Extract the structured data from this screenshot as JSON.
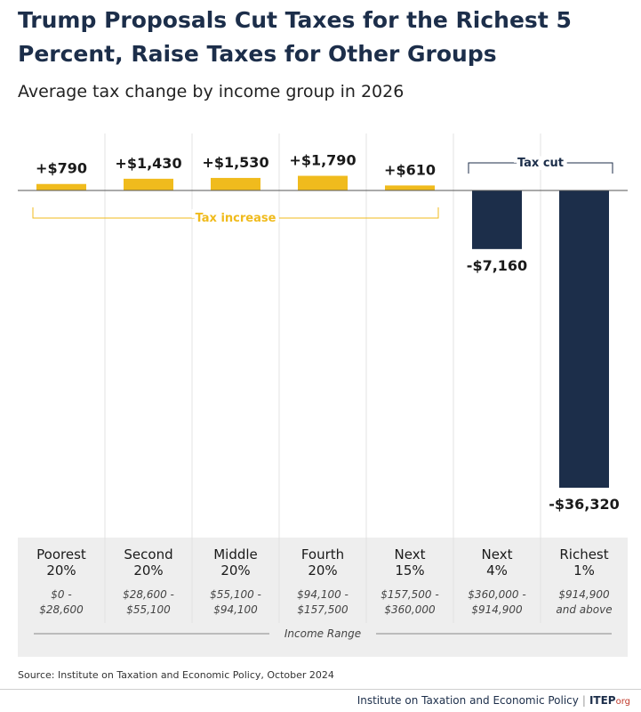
{
  "title": "Trump Proposals Cut Taxes for the Richest 5 Percent, Raise Taxes for Other Groups",
  "subtitle": "Average tax change by income group in 2026",
  "source": "Source: Institute on Taxation and Economic Policy, October 2024",
  "footer": {
    "org_name": "Institute on Taxation and Economic Policy",
    "logo_main": "ITEP",
    "logo_suffix": "org"
  },
  "colors": {
    "increase": "#f0bb1d",
    "cut": "#1c2e4a",
    "band": "#eeeeee",
    "grid": "#e3e3e3"
  },
  "chart_data": {
    "type": "bar",
    "title": "Trump Proposals Cut Taxes for the Richest 5 Percent, Raise Taxes for Other Groups",
    "subtitle": "Average tax change by income group in 2026",
    "xlabel": "Income Range",
    "ylabel": "",
    "categories": [
      "Poorest 20%",
      "Second 20%",
      "Middle 20%",
      "Fourth 20%",
      "Next 15%",
      "Next 4%",
      "Richest 1%"
    ],
    "category_lines": [
      [
        "Poorest",
        "20%"
      ],
      [
        "Second",
        "20%"
      ],
      [
        "Middle",
        "20%"
      ],
      [
        "Fourth",
        "20%"
      ],
      [
        "Next",
        "15%"
      ],
      [
        "Next",
        "4%"
      ],
      [
        "Richest",
        "1%"
      ]
    ],
    "ranges": [
      [
        "$0 -",
        "$28,600"
      ],
      [
        "$28,600 -",
        "$55,100"
      ],
      [
        "$55,100 -",
        "$94,100"
      ],
      [
        "$94,100 -",
        "$157,500"
      ],
      [
        "$157,500 -",
        "$360,000"
      ],
      [
        "$360,000 -",
        "$914,900"
      ],
      [
        "$914,900",
        "and above"
      ]
    ],
    "values": [
      790,
      1430,
      1530,
      1790,
      610,
      -7160,
      -36320
    ],
    "value_labels": [
      "+$790",
      "+$1,430",
      "+$1,530",
      "+$1,790",
      "+$610",
      "-$7,160",
      "-$36,320"
    ],
    "ylim": [
      -36320,
      1790
    ],
    "grid": false,
    "annotations": [
      {
        "text": "Tax increase",
        "from_category": 0,
        "to_category": 4,
        "position": "below-axis"
      },
      {
        "text": "Tax cut",
        "from_category": 5,
        "to_category": 6,
        "position": "above-axis"
      }
    ]
  }
}
